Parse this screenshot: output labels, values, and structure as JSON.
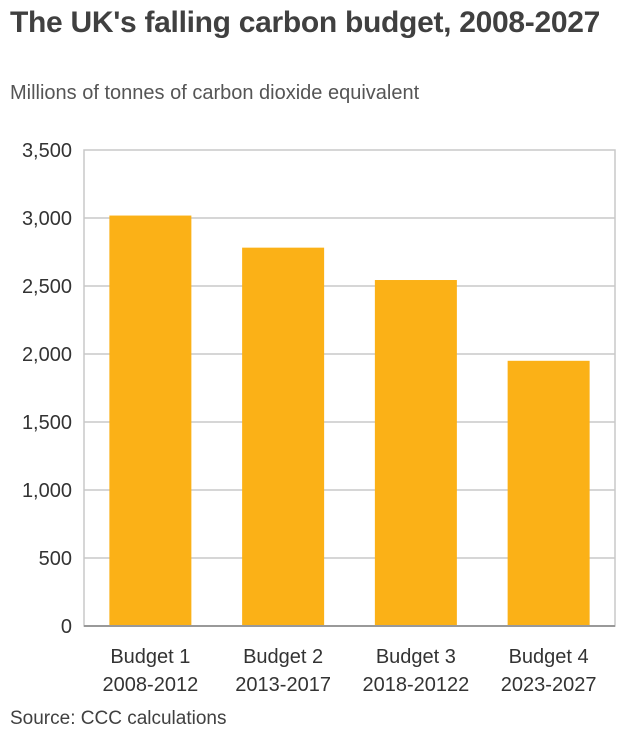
{
  "header": {
    "title": "The UK's falling carbon budget, 2008-2027",
    "subtitle": "Millions of tonnes of carbon dioxide equivalent"
  },
  "footer": {
    "source": "Source: CCC calculations"
  },
  "colors": {
    "bar": "#FBB117",
    "grid": "#c8c8c8",
    "axis": "#999999",
    "text": "#333333"
  },
  "chart_data": {
    "type": "bar",
    "title": "The UK's falling carbon budget, 2008-2027",
    "subtitle": "Millions of tonnes of carbon dioxide equivalent",
    "xlabel": "",
    "ylabel": "",
    "categories": [
      [
        "Budget 1",
        "2008-2012"
      ],
      [
        "Budget 2",
        "2013-2017"
      ],
      [
        "Budget 3",
        "2018-20122"
      ],
      [
        "Budget 4",
        "2023-2027"
      ]
    ],
    "values": [
      3018,
      2782,
      2544,
      1950
    ],
    "ylim": [
      0,
      3500
    ],
    "yticks": [
      0,
      500,
      1000,
      1500,
      2000,
      2500,
      3000,
      3500
    ],
    "ytick_labels": [
      "0",
      "500",
      "1,000",
      "1,500",
      "2,000",
      "2,500",
      "3,000",
      "3,500"
    ],
    "grid": true,
    "legend": "none"
  }
}
